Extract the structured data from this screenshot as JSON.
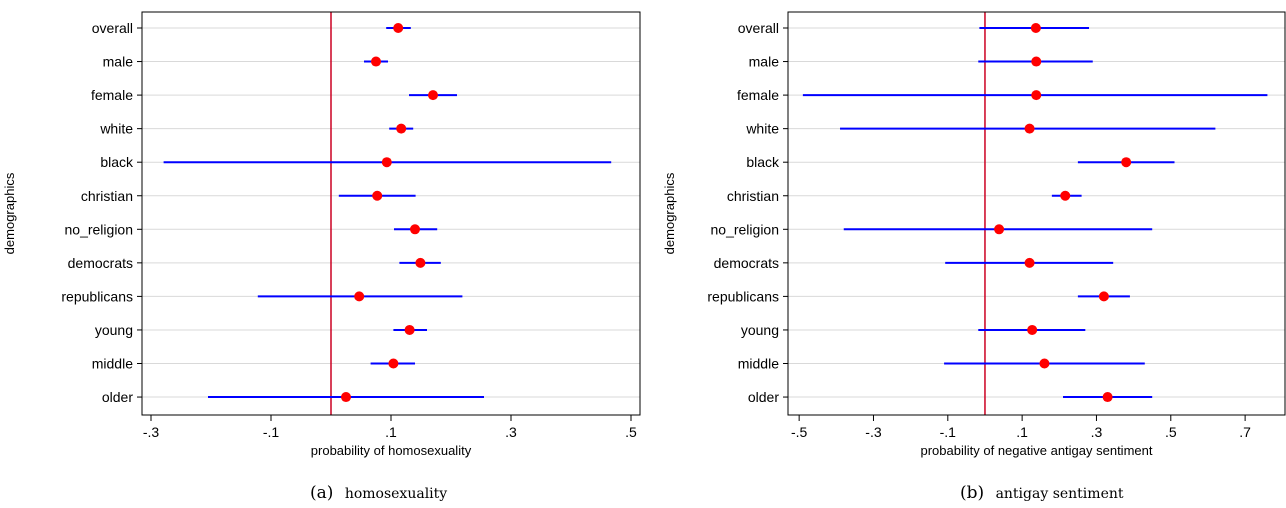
{
  "chart_data": [
    {
      "type": "scatter",
      "subtype": "coefficient-plot-with-confidence-intervals",
      "caption_label": "(a)",
      "caption_text": "homosexuality",
      "xlabel": "probability of homosexuality",
      "ylabel": "demographics",
      "xlim": [
        -0.315,
        0.515
      ],
      "x_ticks": [
        -0.3,
        -0.1,
        0.1,
        0.3,
        0.5
      ],
      "x_tick_labels": [
        "-.3",
        "-.1",
        ".1",
        ".3",
        ".5"
      ],
      "reference_line_x": 0.0,
      "grid": "horizontal",
      "categories": [
        "overall",
        "male",
        "female",
        "white",
        "black",
        "christian",
        "no_religion",
        "democrats",
        "republicans",
        "young",
        "middle",
        "older"
      ],
      "estimates": [
        0.112,
        0.075,
        0.17,
        0.117,
        0.093,
        0.077,
        0.14,
        0.149,
        0.047,
        0.131,
        0.104,
        0.025
      ],
      "ci_low": [
        0.092,
        0.055,
        0.13,
        0.097,
        -0.279,
        0.013,
        0.105,
        0.114,
        -0.122,
        0.104,
        0.066,
        -0.205
      ],
      "ci_high": [
        0.133,
        0.095,
        0.21,
        0.137,
        0.467,
        0.141,
        0.177,
        0.183,
        0.219,
        0.16,
        0.14,
        0.255
      ],
      "colors": {
        "estimate": "#ff0000",
        "interval": "#0000ff",
        "reference": "#cc0022",
        "grid": "#d9d9d9"
      }
    },
    {
      "type": "scatter",
      "subtype": "coefficient-plot-with-confidence-intervals",
      "caption_label": "(b)",
      "caption_text": "antigay sentiment",
      "xlabel": "probability of negative antigay sentiment",
      "ylabel": "demographics",
      "xlim": [
        -0.53,
        0.81
      ],
      "x_ticks": [
        -0.5,
        -0.3,
        -0.1,
        0.1,
        0.3,
        0.5,
        0.7
      ],
      "x_tick_labels": [
        "-.5",
        "-.3",
        "-.1",
        ".1",
        ".3",
        ".5",
        ".7"
      ],
      "reference_line_x": 0.0,
      "grid": "horizontal",
      "categories": [
        "overall",
        "male",
        "female",
        "white",
        "black",
        "christian",
        "no_religion",
        "democrats",
        "republicans",
        "young",
        "middle",
        "older"
      ],
      "estimates": [
        0.137,
        0.138,
        0.138,
        0.12,
        0.38,
        0.216,
        0.038,
        0.12,
        0.32,
        0.127,
        0.16,
        0.33
      ],
      "ci_low": [
        -0.015,
        -0.018,
        -0.49,
        -0.39,
        0.25,
        0.18,
        -0.38,
        -0.107,
        0.25,
        -0.018,
        -0.11,
        0.21
      ],
      "ci_high": [
        0.28,
        0.29,
        0.76,
        0.62,
        0.51,
        0.26,
        0.45,
        0.345,
        0.39,
        0.27,
        0.43,
        0.45
      ],
      "colors": {
        "estimate": "#ff0000",
        "interval": "#0000ff",
        "reference": "#cc0022",
        "grid": "#d9d9d9"
      }
    }
  ]
}
